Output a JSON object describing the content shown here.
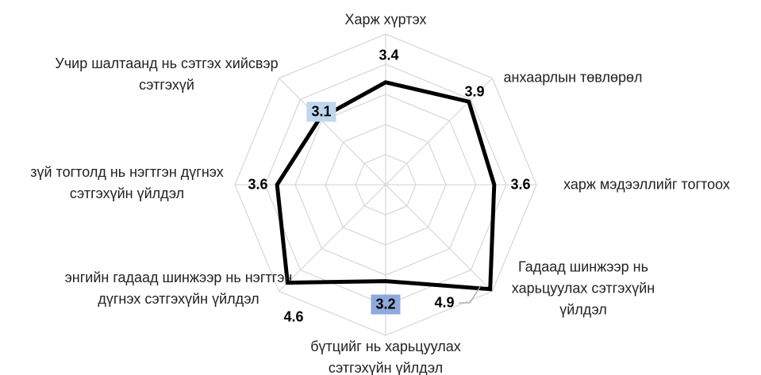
{
  "chart_data": {
    "type": "radar",
    "categories": [
      "Харж хүртэх",
      "анхаарлын төвлөрөл",
      "харж мэдээллийг тогтоох",
      "Гадаад шинжээр нь харьцуулах сэтгэхүйн үйлдэл",
      "бүтцийг нь харьцуулах сэтгэхүйн үйлдэл",
      "энгийн гадаад шинжээр нь нэгтгэн дүгнэх сэтгэхүйн үйлдэл",
      "зүй тогтолд нь нэгтгэн дүгнэх сэтгэхүйн үйлдэл",
      "Учир шалтаанд нь сэтгэх хийсвэр сэтгэхүй"
    ],
    "values": [
      3.4,
      3.9,
      3.6,
      4.9,
      3.2,
      4.6,
      3.6,
      3.1
    ],
    "color": "#000000",
    "rlim": [
      0,
      5
    ],
    "rticks": [
      1,
      2,
      3,
      4,
      5
    ],
    "grid": true
  }
}
